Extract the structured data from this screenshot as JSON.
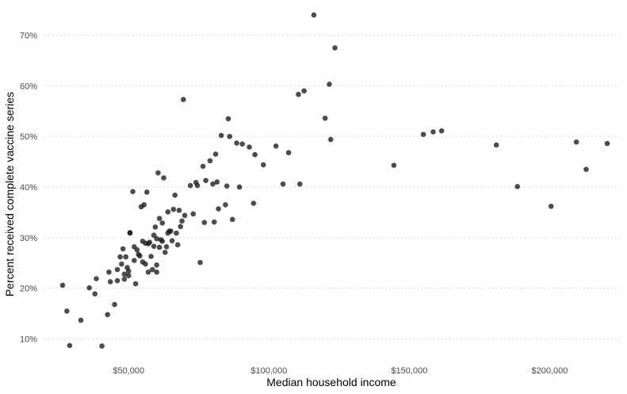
{
  "chart_data": {
    "type": "scatter",
    "title": "",
    "xlabel": "Median household income",
    "ylabel": "Percent received complete vaccine series",
    "xlim": [
      20000,
      225000
    ],
    "ylim": [
      0.057,
      0.757
    ],
    "grid": "horizontal dotted",
    "x_ticks": [
      50000,
      100000,
      150000,
      200000
    ],
    "x_tick_labels": [
      "$50,000",
      "$100,000",
      "$150,000",
      "$200,000"
    ],
    "y_ticks": [
      0.1,
      0.2,
      0.3,
      0.4,
      0.5,
      0.6,
      0.7
    ],
    "y_tick_labels": [
      "10%",
      "20%",
      "30%",
      "40%",
      "50%",
      "60%",
      "70%"
    ],
    "point_color": "#1a1a1a",
    "points": [
      [
        26500,
        0.206
      ],
      [
        28000,
        0.155
      ],
      [
        29000,
        0.087
      ],
      [
        33000,
        0.137
      ],
      [
        36000,
        0.201
      ],
      [
        38500,
        0.219
      ],
      [
        38000,
        0.189
      ],
      [
        40500,
        0.086
      ],
      [
        42500,
        0.148
      ],
      [
        43000,
        0.232
      ],
      [
        43500,
        0.213
      ],
      [
        45000,
        0.168
      ],
      [
        46000,
        0.237
      ],
      [
        46000,
        0.215
      ],
      [
        47000,
        0.262
      ],
      [
        47500,
        0.248
      ],
      [
        48000,
        0.278
      ],
      [
        48500,
        0.228
      ],
      [
        48500,
        0.218
      ],
      [
        49000,
        0.262
      ],
      [
        49500,
        0.241
      ],
      [
        50000,
        0.234
      ],
      [
        50000,
        0.225
      ],
      [
        50500,
        0.31
      ],
      [
        50500,
        0.309
      ],
      [
        51500,
        0.391
      ],
      [
        52000,
        0.282
      ],
      [
        52000,
        0.255
      ],
      [
        52500,
        0.209
      ],
      [
        53000,
        0.276
      ],
      [
        53500,
        0.267
      ],
      [
        54000,
        0.264
      ],
      [
        54500,
        0.361
      ],
      [
        55000,
        0.293
      ],
      [
        55000,
        0.252
      ],
      [
        55500,
        0.365
      ],
      [
        56000,
        0.248
      ],
      [
        56000,
        0.289
      ],
      [
        56500,
        0.39
      ],
      [
        57000,
        0.232
      ],
      [
        57000,
        0.288
      ],
      [
        57500,
        0.291
      ],
      [
        58000,
        0.263
      ],
      [
        58500,
        0.237
      ],
      [
        59000,
        0.305
      ],
      [
        59000,
        0.283
      ],
      [
        59500,
        0.321
      ],
      [
        60000,
        0.298
      ],
      [
        60000,
        0.246
      ],
      [
        60000,
        0.232
      ],
      [
        60500,
        0.428
      ],
      [
        61000,
        0.338
      ],
      [
        61000,
        0.281
      ],
      [
        61500,
        0.296
      ],
      [
        62000,
        0.329
      ],
      [
        62000,
        0.293
      ],
      [
        62500,
        0.418
      ],
      [
        63000,
        0.271
      ],
      [
        63500,
        0.282
      ],
      [
        64000,
        0.309
      ],
      [
        64000,
        0.351
      ],
      [
        64500,
        0.313
      ],
      [
        65000,
        0.313
      ],
      [
        65500,
        0.294
      ],
      [
        66000,
        0.356
      ],
      [
        66500,
        0.384
      ],
      [
        67000,
        0.309
      ],
      [
        67500,
        0.286
      ],
      [
        68000,
        0.354
      ],
      [
        68500,
        0.322
      ],
      [
        69000,
        0.333
      ],
      [
        69500,
        0.573
      ],
      [
        70000,
        0.344
      ],
      [
        72000,
        0.403
      ],
      [
        73000,
        0.347
      ],
      [
        74000,
        0.409
      ],
      [
        74500,
        0.403
      ],
      [
        75500,
        0.251
      ],
      [
        76500,
        0.441
      ],
      [
        77000,
        0.33
      ],
      [
        77500,
        0.413
      ],
      [
        79000,
        0.452
      ],
      [
        80000,
        0.406
      ],
      [
        80500,
        0.331
      ],
      [
        81000,
        0.465
      ],
      [
        81500,
        0.41
      ],
      [
        82000,
        0.357
      ],
      [
        83000,
        0.502
      ],
      [
        84500,
        0.365
      ],
      [
        85000,
        0.402
      ],
      [
        85500,
        0.535
      ],
      [
        86000,
        0.5
      ],
      [
        87000,
        0.336
      ],
      [
        88500,
        0.487
      ],
      [
        89500,
        0.4
      ],
      [
        90500,
        0.485
      ],
      [
        93000,
        0.479
      ],
      [
        94500,
        0.368
      ],
      [
        95000,
        0.464
      ],
      [
        98000,
        0.444
      ],
      [
        102500,
        0.481
      ],
      [
        105000,
        0.406
      ],
      [
        107000,
        0.468
      ],
      [
        110500,
        0.583
      ],
      [
        111000,
        0.406
      ],
      [
        112500,
        0.59
      ],
      [
        116000,
        0.74
      ],
      [
        120000,
        0.536
      ],
      [
        121500,
        0.603
      ],
      [
        122000,
        0.494
      ],
      [
        123500,
        0.675
      ],
      [
        144500,
        0.443
      ],
      [
        155000,
        0.504
      ],
      [
        158500,
        0.509
      ],
      [
        161500,
        0.511
      ],
      [
        181000,
        0.483
      ],
      [
        188500,
        0.401
      ],
      [
        200500,
        0.362
      ],
      [
        209500,
        0.489
      ],
      [
        213000,
        0.435
      ],
      [
        220500,
        0.486
      ]
    ]
  }
}
